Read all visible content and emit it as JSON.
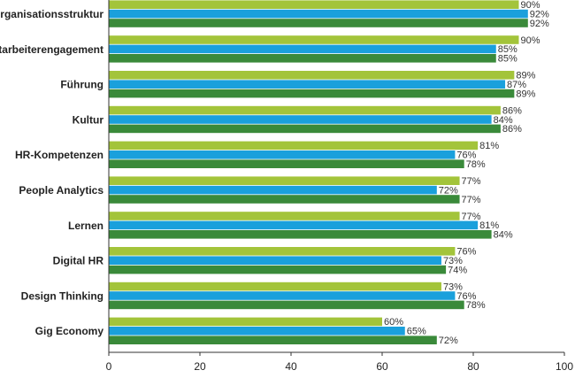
{
  "chart_data": {
    "type": "bar",
    "orientation": "horizontal",
    "categories": [
      "Organisationsstruktur",
      "Mitarbeiterengagement",
      "Führung",
      "Kultur",
      "HR-Kompetenzen",
      "People Analytics",
      "Lernen",
      "Digital HR",
      "Design Thinking",
      "Gig Economy"
    ],
    "series": [
      {
        "color": "#a3c43a",
        "values": [
          90,
          90,
          89,
          86,
          81,
          77,
          77,
          76,
          73,
          60
        ]
      },
      {
        "color": "#1aa0dc",
        "values": [
          92,
          85,
          87,
          84,
          76,
          72,
          81,
          73,
          76,
          65
        ]
      },
      {
        "color": "#3a8a3a",
        "values": [
          92,
          85,
          89,
          86,
          78,
          77,
          84,
          74,
          78,
          72
        ]
      }
    ],
    "value_suffix": "%",
    "xlim": [
      0,
      100
    ],
    "xticks": [
      "0",
      "20",
      "40",
      "60",
      "80",
      "100"
    ],
    "grid": false,
    "legend": false
  }
}
